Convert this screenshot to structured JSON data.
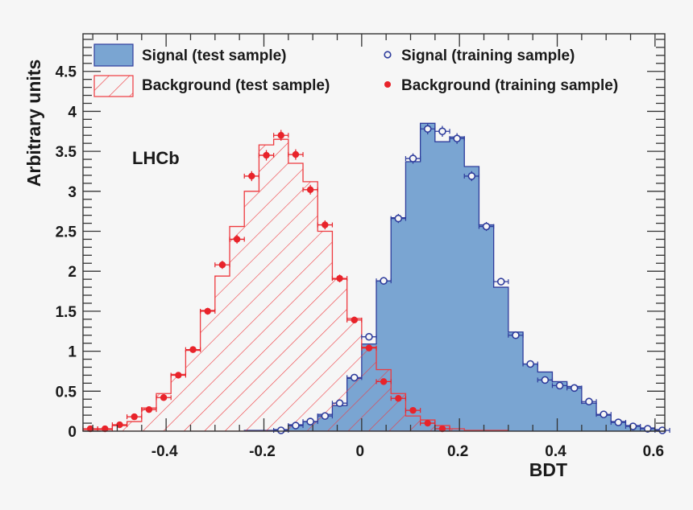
{
  "chart_data": {
    "type": "bar",
    "title": "",
    "xlabel": "BDT",
    "ylabel": "Arbitrary units",
    "annotation": "LHCb",
    "xlim": [
      -0.57,
      0.62
    ],
    "ylim": [
      0,
      4.97
    ],
    "bin_width": 0.03,
    "x_ticks": [
      "-0.4",
      "-0.2",
      "0",
      "0.2",
      "0.4",
      "0.6"
    ],
    "x_tick_values": [
      -0.4,
      -0.2,
      0,
      0.2,
      0.4,
      0.6
    ],
    "y_ticks": [
      "0",
      "0.5",
      "1",
      "1.5",
      "2",
      "2.5",
      "3",
      "3.5",
      "4",
      "4.5"
    ],
    "y_tick_values": [
      0,
      0.5,
      1,
      1.5,
      2,
      2.5,
      3,
      3.5,
      4,
      4.5
    ],
    "grid": false,
    "legend_position": "top",
    "series": [
      {
        "name": "Signal (test sample)",
        "style": "filled-histogram",
        "color": "#7aa5d2",
        "edge_color": "#2e3c9c",
        "first_bin_low_edge": -0.24,
        "values": [
          0.01,
          0.01,
          0.02,
          0.08,
          0.12,
          0.21,
          0.32,
          0.66,
          1.09,
          1.88,
          2.67,
          3.37,
          3.85,
          3.62,
          3.68,
          3.31,
          2.58,
          1.8,
          1.24,
          0.84,
          0.74,
          0.62,
          0.56,
          0.35,
          0.2,
          0.12,
          0.07,
          0.04,
          0.02
        ]
      },
      {
        "name": "Background (test sample)",
        "style": "hatched-histogram",
        "color": "#ee3a3f",
        "first_bin_low_edge": -0.57,
        "values": [
          0.02,
          0.02,
          0.07,
          0.12,
          0.29,
          0.47,
          0.71,
          1.01,
          1.51,
          1.94,
          2.56,
          3.0,
          3.58,
          3.65,
          3.35,
          3.12,
          2.5,
          1.9,
          1.41,
          1.05,
          0.77,
          0.47,
          0.19,
          0.14,
          0.07,
          0.03,
          0.01,
          0.01,
          0.01
        ]
      },
      {
        "name": "Signal (training sample)",
        "style": "open-circle",
        "color": "#2e3c9c",
        "first_bin_center": -0.165,
        "values": [
          0.01,
          0.07,
          0.12,
          0.19,
          0.35,
          0.67,
          1.18,
          1.88,
          2.66,
          3.41,
          3.78,
          3.75,
          3.66,
          3.19,
          2.56,
          1.87,
          1.2,
          0.84,
          0.64,
          0.57,
          0.54,
          0.37,
          0.21,
          0.11,
          0.06,
          0.03,
          0.01
        ]
      },
      {
        "name": "Background (training sample)",
        "style": "filled-circle",
        "color": "#e8232a",
        "first_bin_center": -0.555,
        "values": [
          0.03,
          0.03,
          0.08,
          0.18,
          0.27,
          0.42,
          0.7,
          1.02,
          1.5,
          2.08,
          2.4,
          3.19,
          3.45,
          3.7,
          3.46,
          3.02,
          2.58,
          1.91,
          1.39,
          1.04,
          0.62,
          0.41,
          0.26,
          0.1,
          0.03
        ]
      }
    ]
  }
}
